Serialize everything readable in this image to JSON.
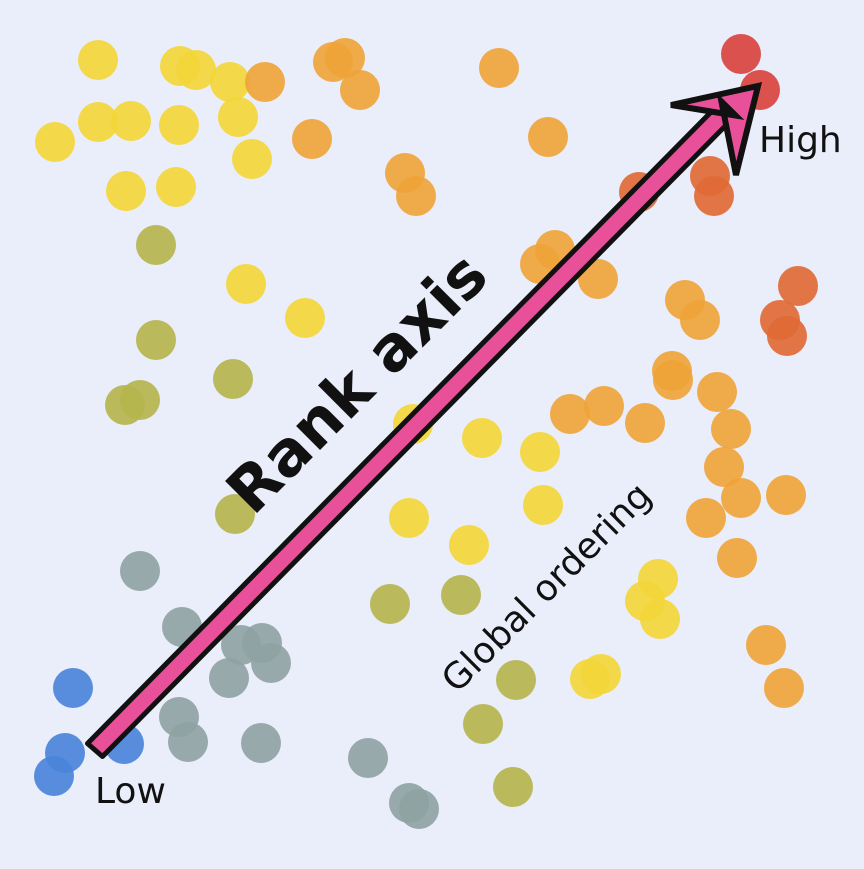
{
  "labels": {
    "title": "Rank axis",
    "subtitle": "Global ordering",
    "low": "Low",
    "high": "High"
  },
  "colors": {
    "background": "#eaeefb",
    "arrow_fill": "#e8519a",
    "arrow_outline": "#111111",
    "text": "#111111",
    "scale": [
      "#4a84d9",
      "#8fa3a3",
      "#b5b54e",
      "#f3d63a",
      "#efa43a",
      "#e06a35",
      "#d9433f"
    ]
  },
  "legend": {
    "type": "scatter with diagonal rank arrow",
    "arrow_direction": "bottom-left to top-right",
    "color_meaning": "blue marks Low rank, red marks High rank"
  }
}
